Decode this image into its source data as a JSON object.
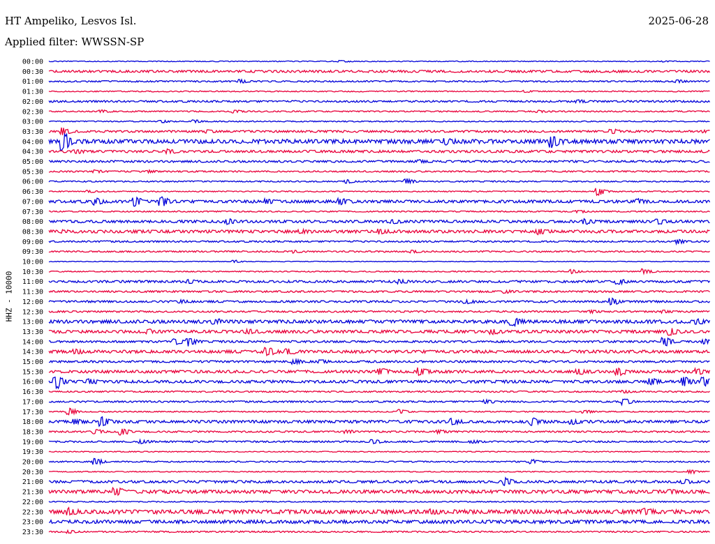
{
  "header": {
    "station": "HT Ampeliko, Lesvos Isl.",
    "date": "2025-06-28",
    "filter": "Applied filter: WWSSN-SP"
  },
  "chart_data": {
    "type": "line",
    "title": "HT Ampeliko, Lesvos Isl.",
    "ylabel": "HHZ - 10000",
    "tick_labels": [
      "00:00",
      "00:30",
      "01:00",
      "01:30",
      "02:00",
      "02:30",
      "03:00",
      "03:30",
      "04:00",
      "04:30",
      "05:00",
      "05:30",
      "06:00",
      "06:30",
      "07:00",
      "07:30",
      "08:00",
      "08:30",
      "09:00",
      "09:30",
      "10:00",
      "10:30",
      "11:00",
      "11:30",
      "12:00",
      "12:30",
      "13:00",
      "13:30",
      "14:00",
      "14:30",
      "15:00",
      "15:30",
      "16:00",
      "16:30",
      "17:00",
      "17:30",
      "18:00",
      "18:30",
      "19:00",
      "19:30",
      "20:00",
      "20:30",
      "21:00",
      "21:30",
      "22:00",
      "22:30",
      "23:00",
      "23:30"
    ],
    "series": [
      {
        "color": "#0000d8"
      },
      {
        "color": "#e8003a"
      }
    ],
    "traces": [
      {
        "noise": 0.5,
        "events": [
          [
            0.44,
            1.0
          ],
          [
            0.93,
            0.5
          ]
        ]
      },
      {
        "noise": 1.2,
        "events": []
      },
      {
        "noise": 0.8,
        "events": [
          [
            0.29,
            2.0
          ],
          [
            0.95,
            1.6
          ]
        ]
      },
      {
        "noise": 0.6,
        "events": [
          [
            0.72,
            1.0
          ]
        ]
      },
      {
        "noise": 1.0,
        "events": [
          [
            0.8,
            1.8
          ]
        ]
      },
      {
        "noise": 0.7,
        "events": [
          [
            0.08,
            1.3
          ],
          [
            0.28,
            1.5
          ],
          [
            0.74,
            1.3
          ]
        ]
      },
      {
        "noise": 0.6,
        "events": [
          [
            0.17,
            1.5
          ],
          [
            0.22,
            1.8
          ]
        ]
      },
      {
        "noise": 1.1,
        "events": [
          [
            0.02,
            4.5
          ],
          [
            0.24,
            1.5
          ],
          [
            0.85,
            3.0
          ],
          [
            0.99,
            1.0
          ]
        ]
      },
      {
        "noise": 2.2,
        "events": [
          [
            0.02,
            11.0
          ],
          [
            0.6,
            3.0
          ],
          [
            0.76,
            8.0
          ]
        ]
      },
      {
        "noise": 1.3,
        "events": [
          [
            0.04,
            2.0
          ],
          [
            0.18,
            2.5
          ]
        ]
      },
      {
        "noise": 1.1,
        "events": [
          [
            0.56,
            1.5
          ]
        ]
      },
      {
        "noise": 0.8,
        "events": [
          [
            0.07,
            1.6
          ],
          [
            0.15,
            1.2
          ]
        ]
      },
      {
        "noise": 0.7,
        "events": [
          [
            0.45,
            2.0
          ],
          [
            0.54,
            3.5
          ]
        ]
      },
      {
        "noise": 0.6,
        "events": [
          [
            0.06,
            1.2
          ],
          [
            0.83,
            5.0
          ]
        ]
      },
      {
        "noise": 1.5,
        "events": [
          [
            0.07,
            3.5
          ],
          [
            0.13,
            5.5
          ],
          [
            0.17,
            6.0
          ],
          [
            0.33,
            2.5
          ],
          [
            0.44,
            4.0
          ],
          [
            0.89,
            2.5
          ]
        ]
      },
      {
        "noise": 0.7,
        "events": [
          [
            0.8,
            1.5
          ]
        ]
      },
      {
        "noise": 1.4,
        "events": [
          [
            0.27,
            3.0
          ],
          [
            0.52,
            2.0
          ],
          [
            0.81,
            3.0
          ],
          [
            0.92,
            3.0
          ]
        ]
      },
      {
        "noise": 1.6,
        "events": [
          [
            0.02,
            1.2
          ],
          [
            0.38,
            2.0
          ],
          [
            0.5,
            2.5
          ],
          [
            0.74,
            3.0
          ]
        ]
      },
      {
        "noise": 0.9,
        "events": [
          [
            0.95,
            2.5
          ]
        ]
      },
      {
        "noise": 0.8,
        "events": [
          [
            0.37,
            1.5
          ],
          [
            0.55,
            1.5
          ]
        ]
      },
      {
        "noise": 0.4,
        "events": [
          [
            0.28,
            1.6
          ]
        ]
      },
      {
        "noise": 0.6,
        "events": [
          [
            0.79,
            2.5
          ],
          [
            0.9,
            3.5
          ]
        ]
      },
      {
        "noise": 1.2,
        "events": [
          [
            0.21,
            2.0
          ],
          [
            0.53,
            2.0
          ],
          [
            0.86,
            3.5
          ]
        ]
      },
      {
        "noise": 1.0,
        "events": [
          [
            0.69,
            1.5
          ]
        ]
      },
      {
        "noise": 1.1,
        "events": [
          [
            0.2,
            1.6
          ],
          [
            0.63,
            2.5
          ],
          [
            0.85,
            4.5
          ]
        ]
      },
      {
        "noise": 0.9,
        "events": [
          [
            0.82,
            1.5
          ],
          [
            0.93,
            1.5
          ]
        ]
      },
      {
        "noise": 1.8,
        "events": [
          [
            0.25,
            2.5
          ],
          [
            0.7,
            5.0
          ],
          [
            0.98,
            2.0
          ]
        ]
      },
      {
        "noise": 1.6,
        "events": [
          [
            0.15,
            2.0
          ],
          [
            0.3,
            2.0
          ],
          [
            0.67,
            2.5
          ],
          [
            0.94,
            4.0
          ]
        ]
      },
      {
        "noise": 1.1,
        "events": [
          [
            0.19,
            3.5
          ],
          [
            0.21,
            5.5
          ],
          [
            0.93,
            6.5
          ],
          [
            0.99,
            2.5
          ]
        ]
      },
      {
        "noise": 1.6,
        "events": [
          [
            0.04,
            2.5
          ],
          [
            0.33,
            5.0
          ],
          [
            0.36,
            3.0
          ]
        ]
      },
      {
        "noise": 1.1,
        "events": [
          [
            0.37,
            3.0
          ],
          [
            0.41,
            2.0
          ]
        ]
      },
      {
        "noise": 1.5,
        "events": [
          [
            0.5,
            4.0
          ],
          [
            0.56,
            5.0
          ],
          [
            0.8,
            3.5
          ],
          [
            0.86,
            4.5
          ],
          [
            0.98,
            3.0
          ]
        ]
      },
      {
        "noise": 1.5,
        "events": [
          [
            0.01,
            9.0
          ],
          [
            0.06,
            3.0
          ],
          [
            0.91,
            4.5
          ],
          [
            0.96,
            6.5
          ],
          [
            0.99,
            5.0
          ]
        ]
      },
      {
        "noise": 0.8,
        "events": [
          [
            0.87,
            1.5
          ]
        ]
      },
      {
        "noise": 0.9,
        "events": [
          [
            0.66,
            2.5
          ],
          [
            0.87,
            4.0
          ]
        ]
      },
      {
        "noise": 0.6,
        "events": [
          [
            0.03,
            5.0
          ],
          [
            0.53,
            3.0
          ],
          [
            0.81,
            2.0
          ]
        ]
      },
      {
        "noise": 1.5,
        "events": [
          [
            0.04,
            2.5
          ],
          [
            0.08,
            5.5
          ],
          [
            0.61,
            3.5
          ],
          [
            0.73,
            4.5
          ],
          [
            0.79,
            3.0
          ]
        ]
      },
      {
        "noise": 0.9,
        "events": [
          [
            0.07,
            2.5
          ],
          [
            0.11,
            4.5
          ],
          [
            0.45,
            2.0
          ],
          [
            0.59,
            2.0
          ]
        ]
      },
      {
        "noise": 0.9,
        "events": [
          [
            0.14,
            2.5
          ],
          [
            0.49,
            2.5
          ],
          [
            0.64,
            1.5
          ]
        ]
      },
      {
        "noise": 0.5,
        "events": []
      },
      {
        "noise": 0.7,
        "events": [
          [
            0.07,
            4.0
          ],
          [
            0.73,
            2.5
          ]
        ]
      },
      {
        "noise": 0.5,
        "events": [
          [
            0.97,
            2.5
          ]
        ]
      },
      {
        "noise": 1.3,
        "events": [
          [
            0.69,
            4.5
          ],
          [
            0.96,
            2.0
          ]
        ]
      },
      {
        "noise": 1.8,
        "events": [
          [
            0.1,
            4.5
          ],
          [
            0.94,
            2.0
          ]
        ]
      },
      {
        "noise": 0.6,
        "events": []
      },
      {
        "noise": 2.2,
        "events": [
          [
            0.03,
            3.5
          ],
          [
            0.58,
            2.0
          ],
          [
            0.9,
            3.0
          ]
        ]
      },
      {
        "noise": 1.8,
        "events": []
      },
      {
        "noise": 0.8,
        "events": [
          [
            0.03,
            1.5
          ]
        ]
      }
    ]
  }
}
